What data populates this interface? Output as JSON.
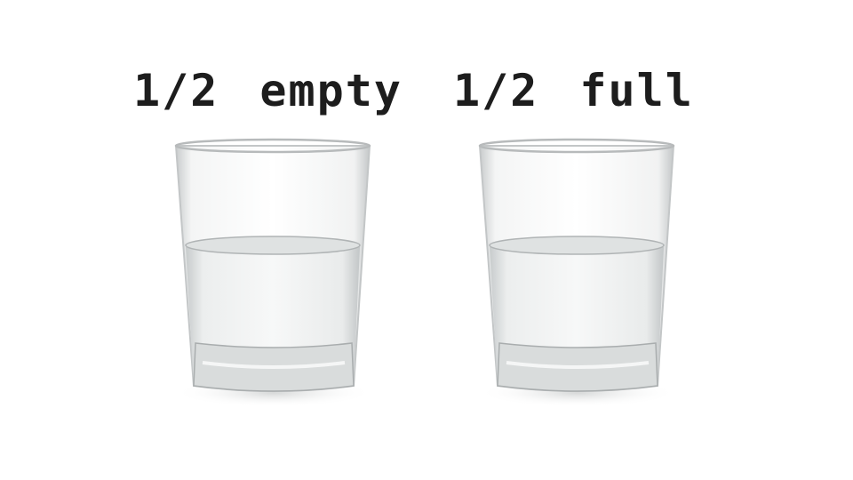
{
  "labels": {
    "left": "1/2 empty",
    "right": "1/2 full"
  },
  "glasses": [
    {
      "name": "left-glass",
      "fill_fraction": 0.5
    },
    {
      "name": "right-glass",
      "fill_fraction": 0.5
    }
  ],
  "colors": {
    "background": "#ffffff",
    "text": "#1d1d1d",
    "glass_edge": "#b9bcbd",
    "water": "#eef1f1"
  }
}
